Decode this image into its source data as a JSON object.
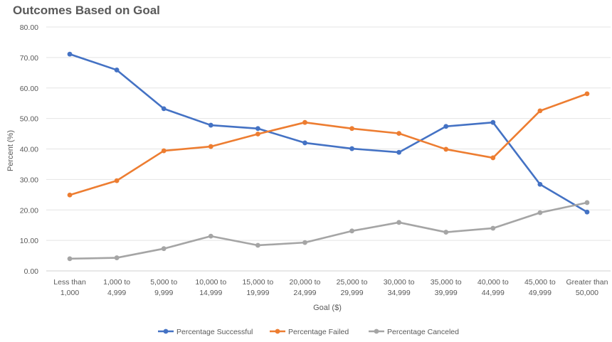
{
  "chart_data": {
    "type": "line",
    "title": "Outcomes Based on Goal",
    "xlabel": "Goal ($)",
    "ylabel": "Percent (%)",
    "ylim": [
      0,
      80
    ],
    "y_ticks": [
      "0.00",
      "10.00",
      "20.00",
      "30.00",
      "40.00",
      "50.00",
      "60.00",
      "70.00",
      "80.00"
    ],
    "grid": true,
    "legend_position": "bottom",
    "categories": [
      [
        "Less than",
        "1,000"
      ],
      [
        "1,000 to",
        "4,999"
      ],
      [
        "5,000 to",
        "9,999"
      ],
      [
        "10,000 to",
        "14,999"
      ],
      [
        "15,000 to",
        "19,999"
      ],
      [
        "20,000 to",
        "24,999"
      ],
      [
        "25,000 to",
        "29,999"
      ],
      [
        "30,000 to",
        "34,999"
      ],
      [
        "35,000 to",
        "39,999"
      ],
      [
        "40,000 to",
        "44,999"
      ],
      [
        "45,000 to",
        "49,999"
      ],
      [
        "Greater than",
        "50,000"
      ]
    ],
    "series": [
      {
        "name": "Percentage Successful",
        "color": "#4472C4",
        "values": [
          71.1,
          65.9,
          53.2,
          47.8,
          46.7,
          42.0,
          40.1,
          38.9,
          47.4,
          48.7,
          28.4,
          19.3
        ]
      },
      {
        "name": "Percentage Failed",
        "color": "#ED7D31",
        "values": [
          24.9,
          29.6,
          39.4,
          40.8,
          44.9,
          48.7,
          46.7,
          45.1,
          39.9,
          37.1,
          52.5,
          58.1
        ]
      },
      {
        "name": "Percentage Canceled",
        "color": "#A5A5A5",
        "values": [
          4.0,
          4.3,
          7.3,
          11.4,
          8.4,
          9.3,
          13.1,
          15.9,
          12.7,
          14.0,
          19.1,
          22.4
        ]
      }
    ]
  }
}
